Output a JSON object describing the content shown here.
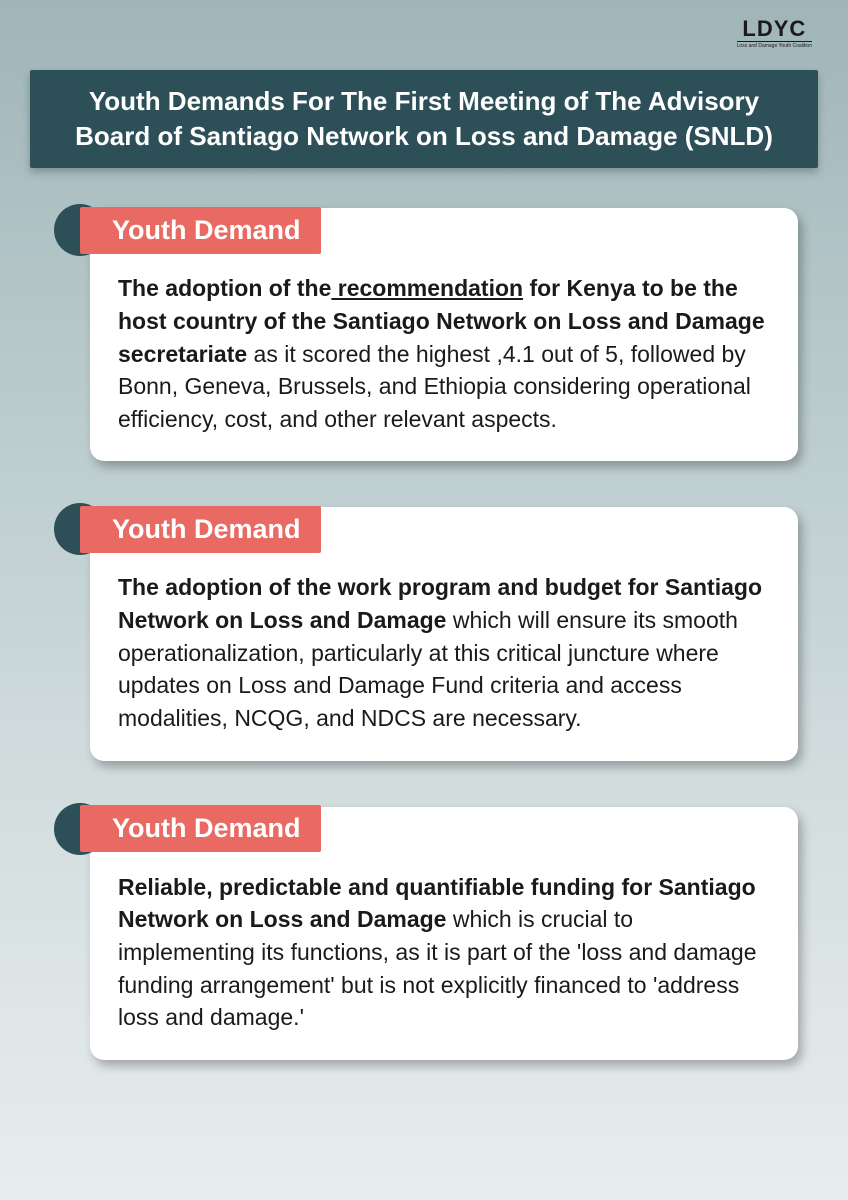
{
  "logo": {
    "main": "LDYC",
    "sub": "Loss and Damage Youth Coalition"
  },
  "title": "Youth Demands For The First Meeting of The Advisory Board of Santiago Network on Loss and Damage (SNLD)",
  "colors": {
    "header_bg": "#2d5058",
    "badge_circle": "#2d5058",
    "badge_bg": "#e86a62",
    "card_bg": "#ffffff",
    "bg_gradient_top": "#9fb5b8",
    "bg_gradient_bottom": "#e8edee",
    "text": "#1a1a1a",
    "title_text": "#ffffff"
  },
  "typography": {
    "title_fontsize": 26,
    "badge_fontsize": 27,
    "body_fontsize": 23
  },
  "badge_label": "Youth Demand",
  "demands": [
    {
      "bold_lead": "The adoption of the",
      "underlined": " recommendation",
      "bold_tail": " for Kenya to be the  host country of the Santiago Network on Loss and Damage secretariate",
      "rest": " as it scored the highest ,4.1 out of 5, followed by Bonn, Geneva, Brussels, and Ethiopia considering operational efficiency, cost, and other relevant aspects."
    },
    {
      "bold_lead": "The adoption of the work program and budget for Santiago Network on Loss and Damage",
      "underlined": "",
      "bold_tail": "",
      "rest": " which will ensure its smooth operationalization, particularly at this critical juncture where updates on Loss and Damage Fund criteria and access modalities, NCQG, and NDCS are necessary."
    },
    {
      "bold_lead": "Reliable, predictable and quantifiable funding for Santiago Network on Loss and Damage",
      "underlined": "",
      "bold_tail": "",
      "rest": " which is crucial to implementing its functions, as it is part of the 'loss and damage funding arrangement' but is not explicitly financed to 'address loss and damage.'"
    }
  ]
}
